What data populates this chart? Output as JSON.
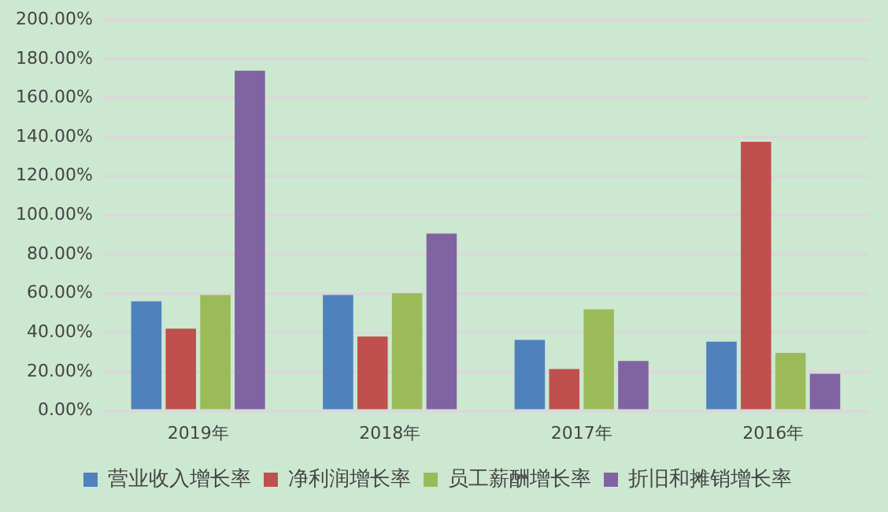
{
  "chart_data": {
    "type": "bar",
    "categories": [
      "2019年",
      "2018年",
      "2017年",
      "2016年"
    ],
    "series": [
      {
        "name": "营业收入增长率",
        "color": "#4f81bd",
        "values": [
          56,
          59.3,
          36.3,
          35.4
        ]
      },
      {
        "name": "净利润增长率",
        "color": "#c0504d",
        "values": [
          42,
          38,
          21.4,
          137.6
        ]
      },
      {
        "name": "员工薪酬增长率",
        "color": "#9bbb59",
        "values": [
          59.3,
          60.2,
          51.9,
          29.7
        ]
      },
      {
        "name": "折旧和摊销增长率",
        "color": "#8064a2",
        "values": [
          174,
          90.7,
          25.5,
          19
        ]
      }
    ],
    "ylim": [
      0,
      200
    ],
    "yticks": [
      {
        "value": 0,
        "label": "0.00%"
      },
      {
        "value": 20,
        "label": "20.00%"
      },
      {
        "value": 40,
        "label": "40.00%"
      },
      {
        "value": 60,
        "label": "60.00%"
      },
      {
        "value": 80,
        "label": "80.00%"
      },
      {
        "value": 100,
        "label": "100.00%"
      },
      {
        "value": 120,
        "label": "120.00%"
      },
      {
        "value": 140,
        "label": "140.00%"
      },
      {
        "value": 160,
        "label": "160.00%"
      },
      {
        "value": 180,
        "label": "180.00%"
      },
      {
        "value": 200,
        "label": "200.00%"
      }
    ],
    "grid": "y",
    "legend": "bottom"
  }
}
